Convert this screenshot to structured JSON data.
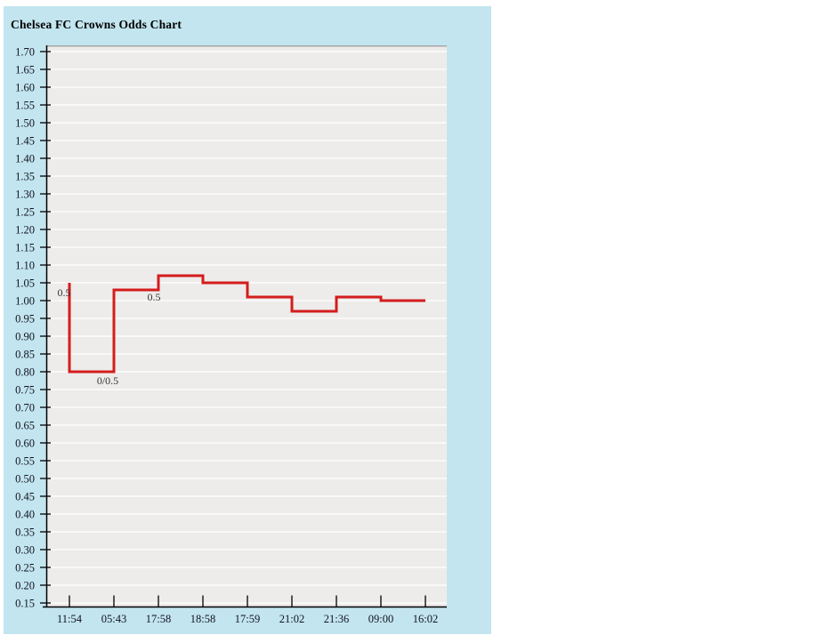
{
  "panel": {
    "title": "Chelsea FC Crowns Odds Chart"
  },
  "colors": {
    "panel_bg": "#c2e5ef",
    "plot_bg": "#edecea",
    "plot_top_border": "#a6a6a6",
    "grid": "#fcfcfc",
    "axis": "#000000",
    "line": "#d41d1d",
    "tick_label": "#13131f",
    "annotation": "#333333"
  },
  "chart_data": {
    "type": "line",
    "title": "Chelsea FC Crowns Odds Chart",
    "line_style": "step",
    "grid": "horizontal",
    "legend": "none",
    "x_tick_labels": [
      "11:54",
      "05:43",
      "17:58",
      "18:58",
      "17:59",
      "21:02",
      "21:36",
      "09:00",
      "16:02"
    ],
    "y_axis": {
      "max": 1.7,
      "min": 0.15,
      "step": 0.05,
      "decimals": 2
    },
    "series": [
      {
        "name": "odds",
        "open_value": 1.05,
        "values_after_each_time": [
          0.8,
          1.03,
          1.07,
          1.05,
          1.01,
          0.97,
          1.01,
          1.0,
          1.0
        ],
        "step_points": [
          [
            0,
            1.05
          ],
          [
            0,
            0.8
          ],
          [
            1,
            0.8
          ],
          [
            1,
            1.03
          ],
          [
            2,
            1.03
          ],
          [
            2,
            1.07
          ],
          [
            3,
            1.07
          ],
          [
            3,
            1.05
          ],
          [
            4,
            1.05
          ],
          [
            4,
            1.01
          ],
          [
            5,
            1.01
          ],
          [
            5,
            0.97
          ],
          [
            6,
            0.97
          ],
          [
            6,
            1.01
          ],
          [
            7,
            1.01
          ],
          [
            7,
            1.0
          ],
          [
            8,
            1.0
          ]
        ]
      }
    ],
    "annotations": [
      {
        "text": "0.5",
        "x_tick": -0.12,
        "value": 1.022
      },
      {
        "text": "0/0.5",
        "x_tick": 0.86,
        "value": 0.775
      },
      {
        "text": "0.5",
        "x_tick": 1.9,
        "value": 1.01
      }
    ]
  }
}
